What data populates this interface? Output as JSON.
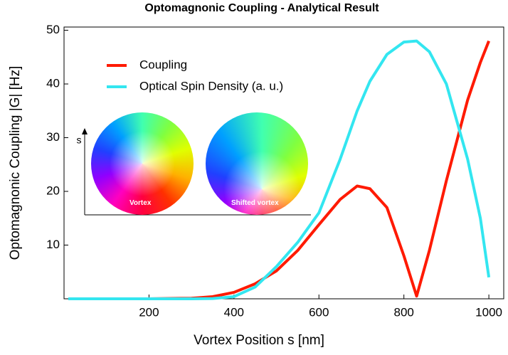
{
  "chart_data": {
    "type": "line",
    "title": "Optomagnonic Coupling - Analytical Result",
    "xlabel": "Vortex Position s [nm]",
    "ylabel": "Optomagnonic Coupling |G| [Hz]",
    "x": [
      10,
      100,
      200,
      300,
      350,
      400,
      450,
      500,
      550,
      600,
      650,
      690,
      720,
      760,
      800,
      830,
      860,
      900,
      950,
      980,
      1000
    ],
    "series": [
      {
        "name": "Coupling",
        "color": "#ff1a00",
        "values": [
          0,
          0,
          0,
          0.1,
          0.4,
          1.2,
          2.8,
          5.2,
          9,
          13.8,
          18.5,
          21,
          20.5,
          17,
          8,
          0.5,
          9,
          22,
          37,
          44,
          48
        ]
      },
      {
        "name": "Optical Spin Density (a. u.)",
        "color": "#33e6f0",
        "values": [
          0,
          0,
          0,
          0,
          0.05,
          0.4,
          2.2,
          6,
          10.5,
          16,
          26,
          35,
          40.5,
          45.5,
          47.8,
          48,
          46,
          40,
          26,
          15,
          4
        ]
      }
    ],
    "xlim": [
      0,
      1035
    ],
    "xticks": [
      200,
      400,
      600,
      800,
      1000
    ],
    "ylim": [
      0,
      50.6
    ],
    "yticks": [
      10,
      20,
      30,
      40,
      50
    ],
    "legend": "upper-left",
    "annotations": [
      "s",
      "Vortex",
      "Shifted vortex"
    ]
  }
}
